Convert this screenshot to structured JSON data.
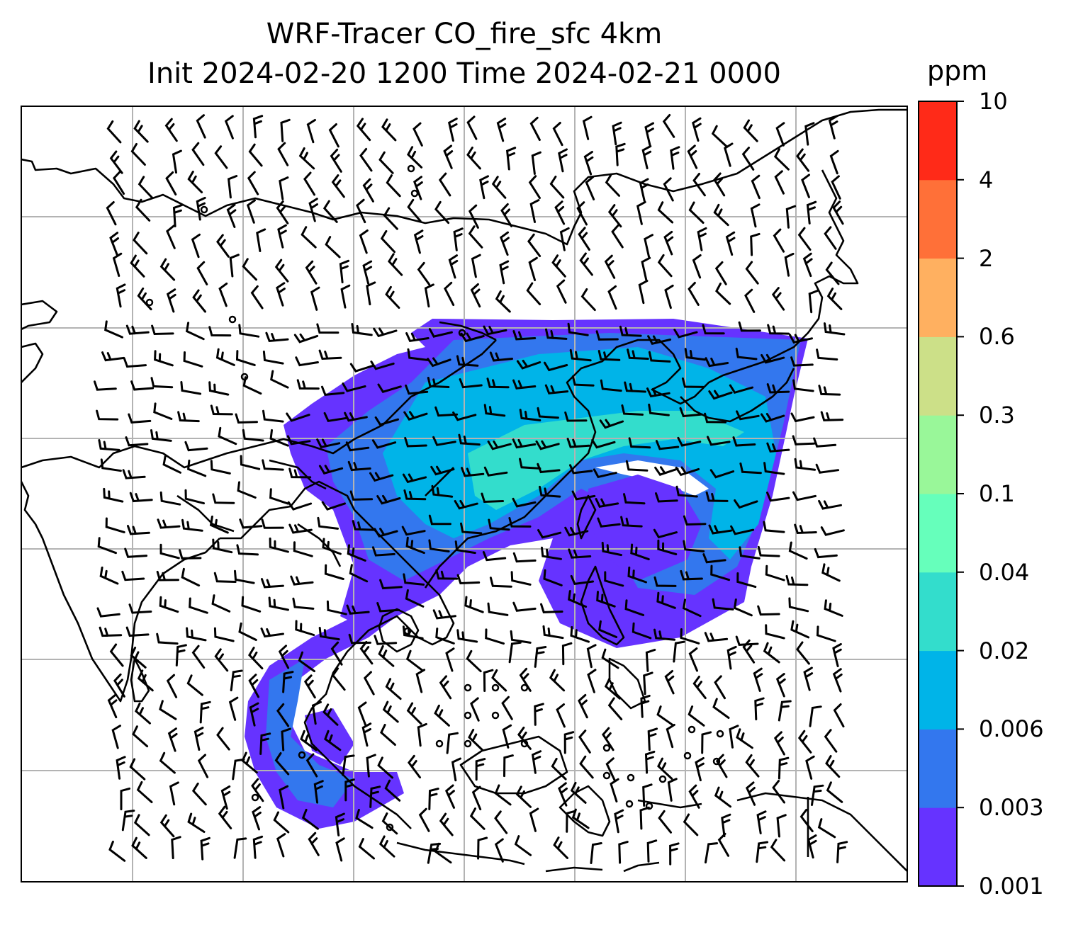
{
  "title": {
    "line1": "WRF-Tracer CO_fire_sfc 4km",
    "line2": "Init 2024-02-20 1200 Time 2024-02-21 0000"
  },
  "colorbar": {
    "unit": "ppm",
    "levels": [
      "0.001",
      "0.003",
      "0.006",
      "0.02",
      "0.04",
      "0.1",
      "0.3",
      "0.6",
      "2",
      "4",
      "10"
    ],
    "colors": [
      "#6633ff",
      "#3377ee",
      "#00b4e8",
      "#33ddcc",
      "#66ffbb",
      "#99f799",
      "#cce088",
      "#ffb060",
      "#ff7038",
      "#ff2a18"
    ]
  },
  "map": {
    "field": "CO_fire_sfc",
    "gridlines": true,
    "features": [
      "coastlines",
      "country-borders",
      "wind-barbs",
      "tracer-plume"
    ]
  }
}
